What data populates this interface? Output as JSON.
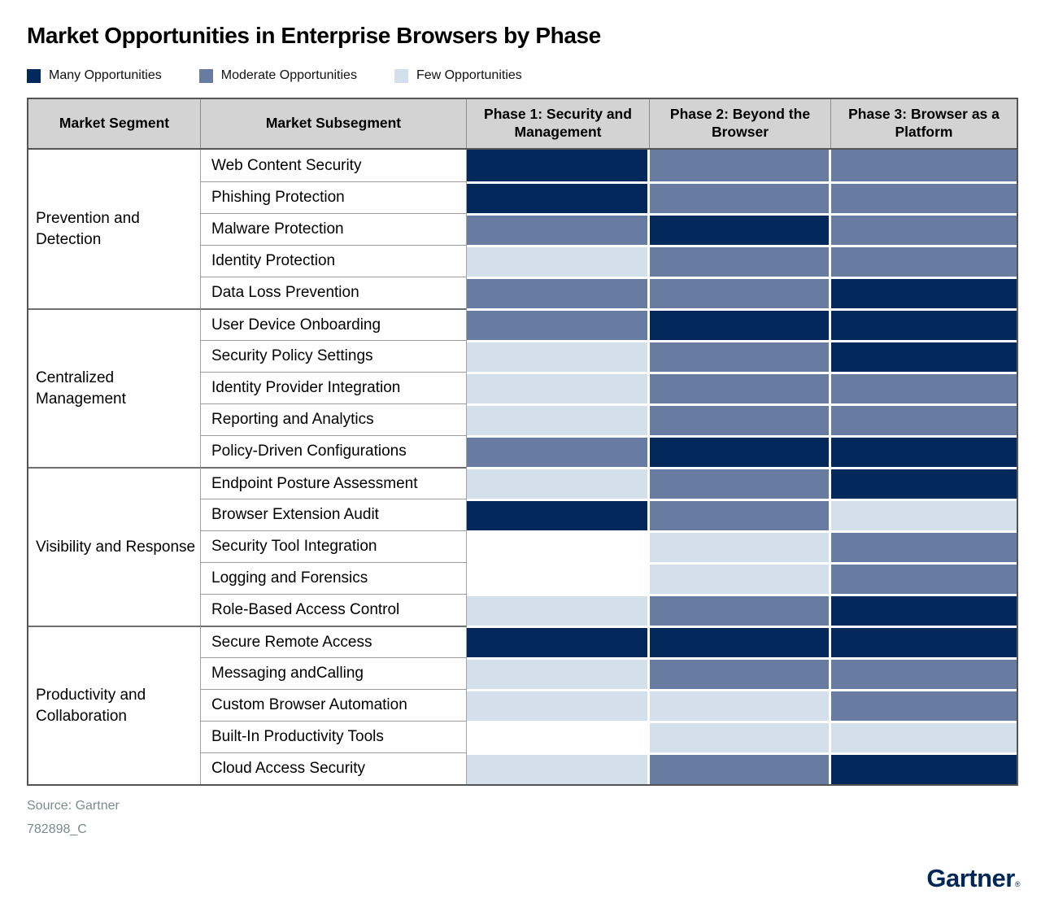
{
  "chart_data": {
    "type": "heatmap",
    "title": "Market Opportunities in Enterprise Browsers by Phase",
    "legend": [
      {
        "label": "Many Opportunities",
        "level": "many",
        "color": "#03285c"
      },
      {
        "label": "Moderate Opportunities",
        "level": "moderate",
        "color": "#687ba1"
      },
      {
        "label": "Few Opportunities",
        "level": "few",
        "color": "#d3e0ec"
      }
    ],
    "cell_colors": {
      "many": "#03285c",
      "moderate": "#687ba1",
      "few": "#d3e0ec",
      "none": "#ffffff"
    },
    "columns": [
      "Market Segment",
      "Market Subsegment",
      "Phase 1: Security and Management",
      "Phase 2: Beyond the Browser",
      "Phase 3: Browser as a Platform"
    ],
    "segments": [
      {
        "name": "Prevention and Detection",
        "rows": [
          {
            "subsegment": "Web Content Security",
            "phases": [
              "many",
              "moderate",
              "moderate"
            ]
          },
          {
            "subsegment": "Phishing Protection",
            "phases": [
              "many",
              "moderate",
              "moderate"
            ]
          },
          {
            "subsegment": "Malware Protection",
            "phases": [
              "moderate",
              "many",
              "moderate"
            ]
          },
          {
            "subsegment": "Identity Protection",
            "phases": [
              "few",
              "moderate",
              "moderate"
            ]
          },
          {
            "subsegment": "Data Loss Prevention",
            "phases": [
              "moderate",
              "moderate",
              "many"
            ]
          }
        ]
      },
      {
        "name": "Centralized Management",
        "rows": [
          {
            "subsegment": "User Device Onboarding",
            "phases": [
              "moderate",
              "many",
              "many"
            ]
          },
          {
            "subsegment": "Security Policy Settings",
            "phases": [
              "few",
              "moderate",
              "many"
            ]
          },
          {
            "subsegment": "Identity Provider Integration",
            "phases": [
              "few",
              "moderate",
              "moderate"
            ]
          },
          {
            "subsegment": "Reporting and Analytics",
            "phases": [
              "few",
              "moderate",
              "moderate"
            ]
          },
          {
            "subsegment": "Policy-Driven Configurations",
            "phases": [
              "moderate",
              "many",
              "many"
            ]
          }
        ]
      },
      {
        "name": "Visibility and Response",
        "rows": [
          {
            "subsegment": "Endpoint Posture Assessment",
            "phases": [
              "few",
              "moderate",
              "many"
            ]
          },
          {
            "subsegment": "Browser Extension Audit",
            "phases": [
              "many",
              "moderate",
              "few"
            ]
          },
          {
            "subsegment": "Security Tool Integration",
            "phases": [
              "none",
              "few",
              "moderate"
            ]
          },
          {
            "subsegment": "Logging and Forensics",
            "phases": [
              "none",
              "few",
              "moderate"
            ]
          },
          {
            "subsegment": "Role-Based Access Control",
            "phases": [
              "few",
              "moderate",
              "many"
            ]
          }
        ]
      },
      {
        "name": "Productivity and Collaboration",
        "rows": [
          {
            "subsegment": "Secure Remote Access",
            "phases": [
              "many",
              "many",
              "many"
            ]
          },
          {
            "subsegment": "Messaging andCalling",
            "phases": [
              "few",
              "moderate",
              "moderate"
            ]
          },
          {
            "subsegment": "Custom Browser Automation",
            "phases": [
              "few",
              "few",
              "moderate"
            ]
          },
          {
            "subsegment": "Built-In Productivity Tools",
            "phases": [
              "none",
              "few",
              "few"
            ]
          },
          {
            "subsegment": "Cloud Access Security",
            "phases": [
              "few",
              "moderate",
              "many"
            ]
          }
        ]
      }
    ]
  },
  "footer": {
    "source": "Source: Gartner",
    "doc_id": "782898_C"
  },
  "branding": {
    "logo_text": "Gartner",
    "registered_mark": "®",
    "color": "#002856"
  }
}
